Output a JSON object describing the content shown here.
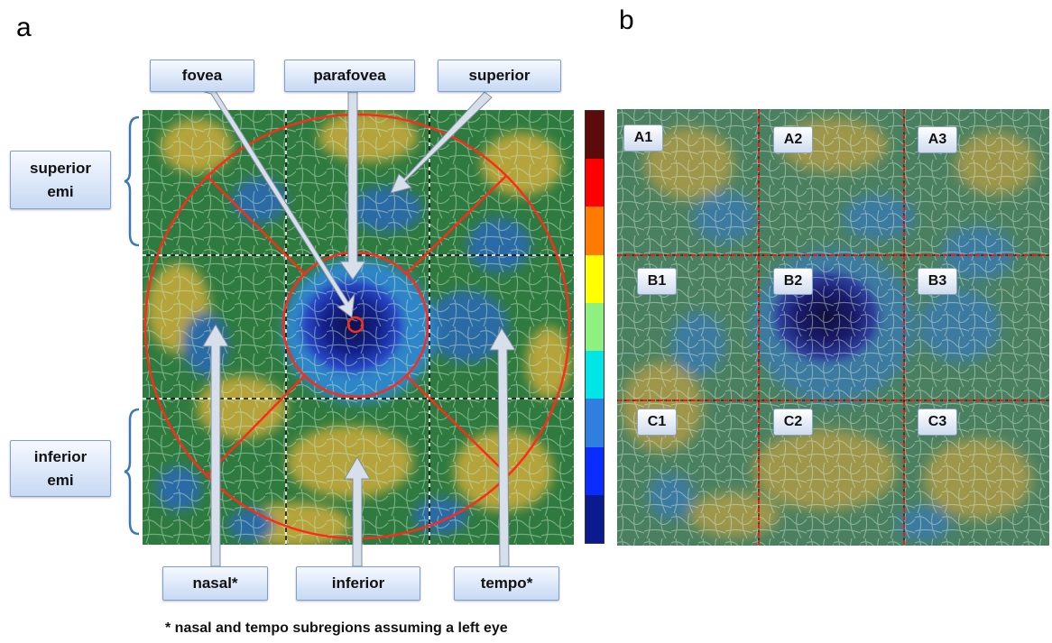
{
  "panels": {
    "a": {
      "letter": "a",
      "labels": {
        "fovea": "fovea",
        "parafovea": "parafovea",
        "superior": "superior",
        "nasal": "nasal*",
        "inferior": "inferior",
        "tempo": "tempo*",
        "superior_hemi_line1": "superior",
        "superior_hemi_line2": "emi",
        "inferior_hemi_line1": "inferior",
        "inferior_hemi_line2": "emi"
      },
      "footnote": "* nasal and tempo subregions assuming a left eye"
    },
    "b": {
      "letter": "b",
      "grid_labels": [
        "A1",
        "A2",
        "A3",
        "B1",
        "B2",
        "B3",
        "C1",
        "C2",
        "C3"
      ]
    }
  },
  "colors": {
    "colorbar": [
      "#5c0a0a",
      "#ff0000",
      "#ff7a00",
      "#ffff00",
      "#8ef07e",
      "#00e5e5",
      "#2f7fe0",
      "#0a2cff",
      "#0b1a8f"
    ],
    "boundary_red": "#ff2a1a",
    "map_green": "#2f7a3f",
    "map_yellow": "#b5a43a",
    "map_blue": "#2a6aa5",
    "fovea_dark": "#121a60"
  }
}
